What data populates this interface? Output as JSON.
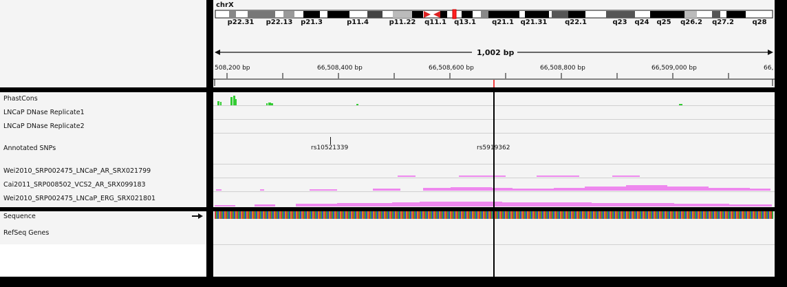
{
  "ideogram": {
    "chromosome": "chrX",
    "bands": [
      "p22.31",
      "p22.13",
      "p21.3",
      "p11.4",
      "p11.22",
      "q11.1",
      "q13.1",
      "q21.1",
      "q21.31",
      "q22.1",
      "q23",
      "q24",
      "q25",
      "q26.2",
      "q27.2",
      "q28"
    ]
  },
  "ruler": {
    "span_label": "1,002 bp",
    "ticks": [
      "508,200 bp",
      "66,508,400 bp",
      "66,508,600 bp",
      "66,508,800 bp",
      "66,509,000 bp",
      "66,"
    ]
  },
  "tracks": {
    "phastcons": "PhastCons",
    "dnase1": "LNCaP DNase Replicate1",
    "dnase2": "LNCaP DNase Replicate2",
    "snps": "Annotated SNPs",
    "chip1": "Wei2010_SRP002475_LNCaP_AR_SRX021799",
    "chip2": "Cai2011_SRP008502_VCS2_AR_SRX099183",
    "chip3": "Wei2010_SRP002475_LNCaP_ERG_SRX021801",
    "sequence": "Sequence",
    "refseq": "RefSeq Genes"
  },
  "snps": {
    "snp1": "rs10521339",
    "snp2": "rs5919362"
  },
  "colors": {
    "phastcons": "#33cc33",
    "coverage": "#ee88ee",
    "cursor": "#000000",
    "region_marker": "#ff0000"
  },
  "icons": {
    "sequence_strand": "right-arrow-icon"
  }
}
